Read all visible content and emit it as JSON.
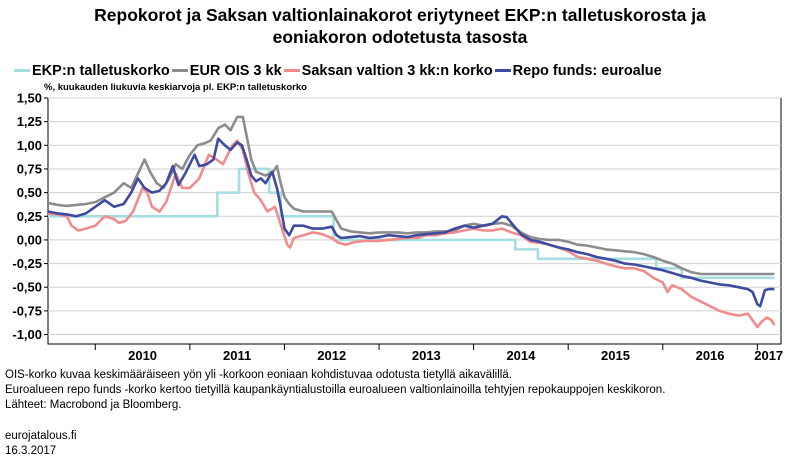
{
  "title_line1": "Repokorot ja Saksan valtionlainakorot eriytyneet EKP:n talletuskorosta ja",
  "title_line2": "eoniakoron odotetusta tasosta",
  "unit_label": "%, kuukauden liukuvia keskiarvoja pl. EKP:n talletuskorko",
  "notes": [
    "OIS-korko kuvaa keskimääräiseen yön yli -korkoon eoniaan kohdistuvaa odotusta tietyllä aikavälillä.",
    "Euroalueen repo funds -korko kertoo tietyillä kaupankäyntialustoilla euroalueen valtionlainoilla tehtyjen repokauppojen keskikoron.",
    "Lähteet: Macrobond ja Bloomberg."
  ],
  "footer": {
    "site": "eurojatalous.fi",
    "date": "16.3.2017"
  },
  "chart_data": {
    "type": "line",
    "title": "Repokorot ja Saksan valtionlainakorot eriytyneet EKP:n talletuskorosta ja eoniakoron odotetusta tasosta",
    "ylabel": "%, kuukauden liukuvia keskiarvoja pl. EKP:n talletuskorko",
    "xlabel": "",
    "xlim": [
      2009.5,
      2017.25
    ],
    "ylim": [
      -1.1,
      1.5
    ],
    "yticks": [
      1.5,
      1.25,
      1.0,
      0.75,
      0.5,
      0.25,
      0.0,
      -0.25,
      -0.5,
      -0.75,
      -1.0
    ],
    "ytick_labels": [
      "1,50",
      "1,25",
      "1,00",
      "0,75",
      "0,50",
      "0,25",
      "0,00",
      "-0,25",
      "-0,50",
      "-0,75",
      "-1,00"
    ],
    "xticks": [
      "2010",
      "2011",
      "2012",
      "2013",
      "2014",
      "2015",
      "2016",
      "2017"
    ],
    "grid": true,
    "legend": "top",
    "series": [
      {
        "name": "EKP:n talletuskorko",
        "color": "#a6dde0",
        "step": true,
        "points": [
          [
            2009.5,
            0.25
          ],
          [
            2011.29,
            0.5
          ],
          [
            2011.52,
            0.75
          ],
          [
            2011.84,
            0.5
          ],
          [
            2011.96,
            0.25
          ],
          [
            2012.52,
            0.0
          ],
          [
            2014.44,
            -0.1
          ],
          [
            2014.68,
            -0.2
          ],
          [
            2015.93,
            -0.3
          ],
          [
            2016.2,
            -0.4
          ],
          [
            2017.18,
            -0.4
          ]
        ]
      },
      {
        "name": "EUR OIS 3 kk",
        "color": "#8c8c8c",
        "points": [
          [
            2009.5,
            0.39
          ],
          [
            2009.6,
            0.37
          ],
          [
            2009.7,
            0.36
          ],
          [
            2009.8,
            0.37
          ],
          [
            2009.9,
            0.38
          ],
          [
            2010.0,
            0.4
          ],
          [
            2010.1,
            0.45
          ],
          [
            2010.2,
            0.5
          ],
          [
            2010.3,
            0.6
          ],
          [
            2010.38,
            0.55
          ],
          [
            2010.45,
            0.7
          ],
          [
            2010.52,
            0.85
          ],
          [
            2010.58,
            0.72
          ],
          [
            2010.65,
            0.6
          ],
          [
            2010.72,
            0.55
          ],
          [
            2010.78,
            0.65
          ],
          [
            2010.85,
            0.8
          ],
          [
            2010.92,
            0.75
          ],
          [
            2011.0,
            0.9
          ],
          [
            2011.08,
            1.0
          ],
          [
            2011.15,
            1.02
          ],
          [
            2011.22,
            1.05
          ],
          [
            2011.3,
            1.18
          ],
          [
            2011.37,
            1.22
          ],
          [
            2011.43,
            1.16
          ],
          [
            2011.5,
            1.3
          ],
          [
            2011.56,
            1.3
          ],
          [
            2011.6,
            1.1
          ],
          [
            2011.65,
            0.85
          ],
          [
            2011.7,
            0.72
          ],
          [
            2011.75,
            0.7
          ],
          [
            2011.8,
            0.68
          ],
          [
            2011.88,
            0.72
          ],
          [
            2011.92,
            0.78
          ],
          [
            2011.96,
            0.6
          ],
          [
            2012.0,
            0.45
          ],
          [
            2012.05,
            0.38
          ],
          [
            2012.1,
            0.33
          ],
          [
            2012.2,
            0.3
          ],
          [
            2012.3,
            0.3
          ],
          [
            2012.4,
            0.3
          ],
          [
            2012.5,
            0.3
          ],
          [
            2012.6,
            0.12
          ],
          [
            2012.7,
            0.09
          ],
          [
            2012.8,
            0.08
          ],
          [
            2012.9,
            0.07
          ],
          [
            2013.0,
            0.08
          ],
          [
            2013.1,
            0.08
          ],
          [
            2013.2,
            0.08
          ],
          [
            2013.3,
            0.07
          ],
          [
            2013.4,
            0.08
          ],
          [
            2013.5,
            0.08
          ],
          [
            2013.6,
            0.09
          ],
          [
            2013.7,
            0.09
          ],
          [
            2013.8,
            0.1
          ],
          [
            2013.9,
            0.15
          ],
          [
            2014.0,
            0.17
          ],
          [
            2014.1,
            0.15
          ],
          [
            2014.2,
            0.17
          ],
          [
            2014.3,
            0.18
          ],
          [
            2014.4,
            0.15
          ],
          [
            2014.5,
            0.08
          ],
          [
            2014.6,
            0.03
          ],
          [
            2014.7,
            0.01
          ],
          [
            2014.8,
            0.0
          ],
          [
            2014.9,
            0.0
          ],
          [
            2015.0,
            -0.02
          ],
          [
            2015.1,
            -0.05
          ],
          [
            2015.2,
            -0.06
          ],
          [
            2015.3,
            -0.08
          ],
          [
            2015.4,
            -0.1
          ],
          [
            2015.5,
            -0.11
          ],
          [
            2015.6,
            -0.12
          ],
          [
            2015.7,
            -0.13
          ],
          [
            2015.8,
            -0.15
          ],
          [
            2015.9,
            -0.18
          ],
          [
            2016.0,
            -0.22
          ],
          [
            2016.1,
            -0.25
          ],
          [
            2016.2,
            -0.3
          ],
          [
            2016.3,
            -0.34
          ],
          [
            2016.4,
            -0.36
          ],
          [
            2016.5,
            -0.36
          ],
          [
            2016.6,
            -0.36
          ],
          [
            2016.7,
            -0.36
          ],
          [
            2016.8,
            -0.36
          ],
          [
            2016.9,
            -0.36
          ],
          [
            2017.0,
            -0.36
          ],
          [
            2017.1,
            -0.36
          ],
          [
            2017.18,
            -0.36
          ]
        ]
      },
      {
        "name": "Saksan valtion 3 kk:n korko",
        "color": "#f08c8c",
        "points": [
          [
            2009.5,
            0.28
          ],
          [
            2009.6,
            0.27
          ],
          [
            2009.7,
            0.25
          ],
          [
            2009.75,
            0.15
          ],
          [
            2009.82,
            0.1
          ],
          [
            2009.9,
            0.12
          ],
          [
            2010.0,
            0.15
          ],
          [
            2010.05,
            0.2
          ],
          [
            2010.1,
            0.25
          ],
          [
            2010.2,
            0.22
          ],
          [
            2010.25,
            0.18
          ],
          [
            2010.32,
            0.2
          ],
          [
            2010.4,
            0.3
          ],
          [
            2010.5,
            0.55
          ],
          [
            2010.55,
            0.5
          ],
          [
            2010.6,
            0.35
          ],
          [
            2010.68,
            0.3
          ],
          [
            2010.75,
            0.4
          ],
          [
            2010.85,
            0.7
          ],
          [
            2010.92,
            0.55
          ],
          [
            2011.0,
            0.55
          ],
          [
            2011.1,
            0.65
          ],
          [
            2011.2,
            0.9
          ],
          [
            2011.28,
            0.85
          ],
          [
            2011.35,
            0.8
          ],
          [
            2011.45,
            1.0
          ],
          [
            2011.5,
            1.05
          ],
          [
            2011.56,
            0.95
          ],
          [
            2011.62,
            0.7
          ],
          [
            2011.68,
            0.5
          ],
          [
            2011.75,
            0.42
          ],
          [
            2011.82,
            0.3
          ],
          [
            2011.9,
            0.35
          ],
          [
            2011.98,
            0.1
          ],
          [
            2012.03,
            -0.05
          ],
          [
            2012.06,
            -0.08
          ],
          [
            2012.1,
            0.02
          ],
          [
            2012.2,
            0.05
          ],
          [
            2012.3,
            0.08
          ],
          [
            2012.4,
            0.06
          ],
          [
            2012.5,
            0.02
          ],
          [
            2012.57,
            -0.03
          ],
          [
            2012.65,
            -0.05
          ],
          [
            2012.75,
            -0.02
          ],
          [
            2012.85,
            -0.01
          ],
          [
            2013.0,
            -0.01
          ],
          [
            2013.1,
            0.0
          ],
          [
            2013.2,
            0.01
          ],
          [
            2013.3,
            0.02
          ],
          [
            2013.4,
            0.02
          ],
          [
            2013.5,
            0.05
          ],
          [
            2013.6,
            0.05
          ],
          [
            2013.7,
            0.07
          ],
          [
            2013.8,
            0.08
          ],
          [
            2013.9,
            0.1
          ],
          [
            2014.0,
            0.12
          ],
          [
            2014.1,
            0.1
          ],
          [
            2014.2,
            0.1
          ],
          [
            2014.3,
            0.12
          ],
          [
            2014.4,
            0.08
          ],
          [
            2014.5,
            0.05
          ],
          [
            2014.6,
            -0.02
          ],
          [
            2014.7,
            -0.03
          ],
          [
            2014.8,
            -0.05
          ],
          [
            2014.9,
            -0.08
          ],
          [
            2015.0,
            -0.12
          ],
          [
            2015.1,
            -0.18
          ],
          [
            2015.2,
            -0.2
          ],
          [
            2015.3,
            -0.22
          ],
          [
            2015.4,
            -0.25
          ],
          [
            2015.5,
            -0.28
          ],
          [
            2015.6,
            -0.3
          ],
          [
            2015.7,
            -0.3
          ],
          [
            2015.8,
            -0.33
          ],
          [
            2015.9,
            -0.4
          ],
          [
            2016.0,
            -0.45
          ],
          [
            2016.05,
            -0.55
          ],
          [
            2016.1,
            -0.48
          ],
          [
            2016.2,
            -0.52
          ],
          [
            2016.3,
            -0.6
          ],
          [
            2016.4,
            -0.65
          ],
          [
            2016.5,
            -0.7
          ],
          [
            2016.6,
            -0.75
          ],
          [
            2016.7,
            -0.78
          ],
          [
            2016.8,
            -0.8
          ],
          [
            2016.9,
            -0.78
          ],
          [
            2016.95,
            -0.85
          ],
          [
            2017.0,
            -0.92
          ],
          [
            2017.05,
            -0.86
          ],
          [
            2017.1,
            -0.82
          ],
          [
            2017.15,
            -0.85
          ],
          [
            2017.18,
            -0.9
          ]
        ]
      },
      {
        "name": "Repo funds: euroalue",
        "color": "#3f4aa0",
        "points": [
          [
            2009.5,
            0.3
          ],
          [
            2009.6,
            0.28
          ],
          [
            2009.7,
            0.27
          ],
          [
            2009.8,
            0.25
          ],
          [
            2009.9,
            0.28
          ],
          [
            2010.0,
            0.35
          ],
          [
            2010.1,
            0.42
          ],
          [
            2010.2,
            0.35
          ],
          [
            2010.3,
            0.38
          ],
          [
            2010.38,
            0.5
          ],
          [
            2010.45,
            0.65
          ],
          [
            2010.52,
            0.55
          ],
          [
            2010.6,
            0.5
          ],
          [
            2010.68,
            0.52
          ],
          [
            2010.75,
            0.6
          ],
          [
            2010.82,
            0.78
          ],
          [
            2010.88,
            0.58
          ],
          [
            2010.95,
            0.7
          ],
          [
            2011.05,
            0.9
          ],
          [
            2011.1,
            0.78
          ],
          [
            2011.18,
            0.8
          ],
          [
            2011.25,
            0.85
          ],
          [
            2011.3,
            1.07
          ],
          [
            2011.37,
            1.0
          ],
          [
            2011.43,
            0.95
          ],
          [
            2011.5,
            1.03
          ],
          [
            2011.55,
            1.0
          ],
          [
            2011.6,
            0.85
          ],
          [
            2011.65,
            0.68
          ],
          [
            2011.7,
            0.62
          ],
          [
            2011.75,
            0.65
          ],
          [
            2011.8,
            0.6
          ],
          [
            2011.87,
            0.72
          ],
          [
            2011.92,
            0.55
          ],
          [
            2011.96,
            0.35
          ],
          [
            2012.0,
            0.12
          ],
          [
            2012.05,
            0.05
          ],
          [
            2012.1,
            0.15
          ],
          [
            2012.2,
            0.15
          ],
          [
            2012.3,
            0.12
          ],
          [
            2012.4,
            0.12
          ],
          [
            2012.5,
            0.14
          ],
          [
            2012.55,
            0.05
          ],
          [
            2012.6,
            0.02
          ],
          [
            2012.7,
            0.03
          ],
          [
            2012.8,
            0.04
          ],
          [
            2012.9,
            0.02
          ],
          [
            2013.0,
            0.03
          ],
          [
            2013.1,
            0.05
          ],
          [
            2013.2,
            0.04
          ],
          [
            2013.3,
            0.03
          ],
          [
            2013.4,
            0.05
          ],
          [
            2013.5,
            0.06
          ],
          [
            2013.6,
            0.07
          ],
          [
            2013.7,
            0.08
          ],
          [
            2013.8,
            0.12
          ],
          [
            2013.9,
            0.15
          ],
          [
            2014.0,
            0.13
          ],
          [
            2014.1,
            0.15
          ],
          [
            2014.2,
            0.17
          ],
          [
            2014.3,
            0.25
          ],
          [
            2014.35,
            0.24
          ],
          [
            2014.4,
            0.18
          ],
          [
            2014.45,
            0.12
          ],
          [
            2014.5,
            0.06
          ],
          [
            2014.6,
            0.0
          ],
          [
            2014.7,
            -0.02
          ],
          [
            2014.8,
            -0.05
          ],
          [
            2014.9,
            -0.08
          ],
          [
            2015.0,
            -0.1
          ],
          [
            2015.1,
            -0.13
          ],
          [
            2015.2,
            -0.15
          ],
          [
            2015.3,
            -0.18
          ],
          [
            2015.4,
            -0.2
          ],
          [
            2015.5,
            -0.22
          ],
          [
            2015.6,
            -0.25
          ],
          [
            2015.7,
            -0.26
          ],
          [
            2015.8,
            -0.28
          ],
          [
            2015.9,
            -0.3
          ],
          [
            2016.0,
            -0.32
          ],
          [
            2016.1,
            -0.35
          ],
          [
            2016.2,
            -0.38
          ],
          [
            2016.3,
            -0.4
          ],
          [
            2016.4,
            -0.43
          ],
          [
            2016.5,
            -0.45
          ],
          [
            2016.6,
            -0.47
          ],
          [
            2016.7,
            -0.48
          ],
          [
            2016.8,
            -0.5
          ],
          [
            2016.9,
            -0.52
          ],
          [
            2016.95,
            -0.55
          ],
          [
            2017.0,
            -0.68
          ],
          [
            2017.03,
            -0.7
          ],
          [
            2017.06,
            -0.6
          ],
          [
            2017.08,
            -0.53
          ],
          [
            2017.12,
            -0.52
          ],
          [
            2017.18,
            -0.52
          ]
        ]
      }
    ]
  }
}
